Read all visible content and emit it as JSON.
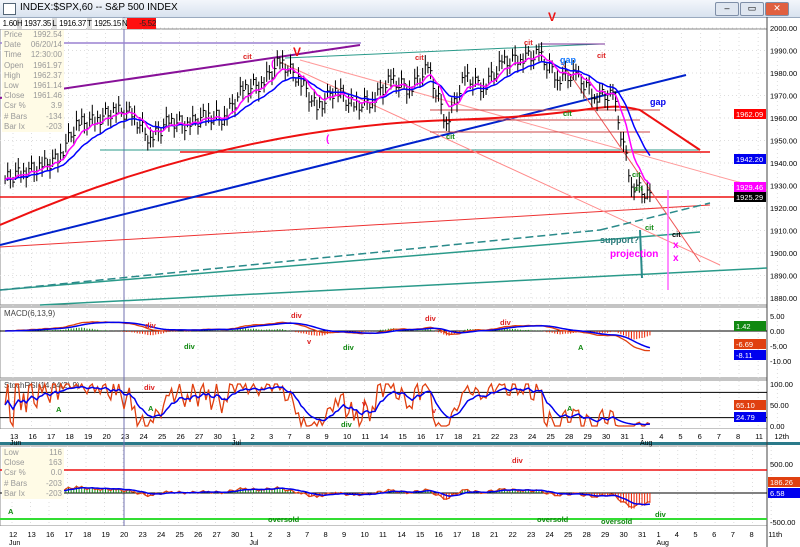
{
  "window": {
    "title": "INDEX:$SPX,60 -- S&P 500 INDEX",
    "minimize": "–",
    "restore": "▭",
    "close": "✕"
  },
  "header": {
    "o_label": "O",
    "o_value": "1.60",
    "h_label": "H",
    "h_value": "1937.35",
    "l_label": "L",
    "l_value": "1916.37",
    "t_label": "T",
    "t_value": "1925.15",
    "n_label": "N",
    "n_value": "-5.52"
  },
  "info_box": [
    [
      "Price",
      "1992.54"
    ],
    [
      "Date",
      "06/20/14"
    ],
    [
      "Time",
      "12:30:00"
    ],
    [
      "Open",
      "1961.97"
    ],
    [
      "High",
      "1962.37"
    ],
    [
      "Low",
      "1961.14"
    ],
    [
      "Close",
      "1961.46"
    ],
    [
      "Csr %",
      "3.9"
    ],
    [
      "# Bars",
      "-134"
    ],
    [
      "Bar Ix",
      "-203"
    ]
  ],
  "info_box_bottom": [
    [
      "Low",
      "116"
    ],
    [
      "Close",
      "163"
    ],
    [
      "Csr %",
      "0.0"
    ],
    [
      "# Bars",
      "-203"
    ],
    [
      "Bar Ix",
      "-203"
    ]
  ],
  "colors": {
    "price": "#000000",
    "fast_ma": "#ff00ff",
    "slow_ma": "#0000ff",
    "ma_long": "#ff0000",
    "trend_teal": "#2a9a8a",
    "up_hist": "#118811",
    "down_hist": "#ee2200"
  },
  "price_axis": {
    "ticks": [
      "2000.00",
      "1990.00",
      "1980.00",
      "1970.00",
      "1960.00",
      "1950.00",
      "1940.00",
      "1930.00",
      "1920.00",
      "1910.00",
      "1900.00",
      "1890.00",
      "1880.00"
    ],
    "badges": [
      {
        "text": "1962.09",
        "color": "#ff0000"
      },
      {
        "text": "1942.20",
        "color": "#0000ee"
      },
      {
        "text": "1929.46",
        "color": "#ff00ff"
      },
      {
        "text": "1925.29",
        "color": "#000000"
      }
    ]
  },
  "macd": {
    "title": "MACD(6,13,9)",
    "ticks": [
      "5.00",
      "0.00",
      "-5.00",
      "-10.00"
    ],
    "badges": [
      {
        "text": "1.42",
        "color": "#118811"
      },
      {
        "text": "-6.69",
        "color": "#e04010"
      },
      {
        "text": "-8.11",
        "color": "#0000ee"
      }
    ]
  },
  "stochrsi": {
    "title": "StochRSI(14,14(2),9)",
    "ticks": [
      "100.00",
      "50.00",
      "0.00"
    ],
    "badges": [
      {
        "text": "65.10",
        "color": "#e04010"
      },
      {
        "text": "24.79",
        "color": "#0000ee"
      }
    ]
  },
  "bottom": {
    "ticks": [
      "500.00",
      "-500.00"
    ],
    "badges": [
      {
        "text": "186.26",
        "color": "#e04010"
      },
      {
        "text": "6.58",
        "color": "#0000ee"
      }
    ]
  },
  "x_axis_top": {
    "labels": [
      "13",
      "16",
      "17",
      "18",
      "19",
      "20",
      "23",
      "24",
      "25",
      "26",
      "27",
      "30",
      "1",
      "2",
      "3",
      "7",
      "8",
      "9",
      "10",
      "11",
      "14",
      "15",
      "16",
      "17",
      "18",
      "21",
      "22",
      "23",
      "24",
      "25",
      "28",
      "29",
      "30",
      "31",
      "1",
      "4",
      "5",
      "6",
      "7",
      "8",
      "11",
      "12th"
    ],
    "months": [
      "Jun",
      "Jul",
      "Aug"
    ]
  },
  "x_axis_bottom": {
    "labels": [
      "12",
      "13",
      "16",
      "17",
      "18",
      "19",
      "20",
      "23",
      "24",
      "25",
      "26",
      "27",
      "30",
      "1",
      "2",
      "3",
      "7",
      "8",
      "9",
      "10",
      "11",
      "14",
      "15",
      "16",
      "17",
      "18",
      "21",
      "22",
      "23",
      "24",
      "25",
      "28",
      "29",
      "30",
      "31",
      "1",
      "4",
      "5",
      "6",
      "7",
      "8",
      "11th"
    ],
    "months": [
      "Jun",
      "Jul",
      "Aug"
    ]
  },
  "chart_data": {
    "type": "line",
    "title": "INDEX:$SPX,60 -- S&P 500 INDEX",
    "x": [
      "Jun 13",
      "Jun 16",
      "Jun 17",
      "Jun 18",
      "Jun 19",
      "Jun 20",
      "Jun 23",
      "Jun 24",
      "Jun 25",
      "Jun 26",
      "Jun 27",
      "Jun 30",
      "Jul 1",
      "Jul 2",
      "Jul 3",
      "Jul 7",
      "Jul 8",
      "Jul 9",
      "Jul 10",
      "Jul 11",
      "Jul 14",
      "Jul 15",
      "Jul 16",
      "Jul 17",
      "Jul 18",
      "Jul 21",
      "Jul 22",
      "Jul 23",
      "Jul 24",
      "Jul 25",
      "Jul 28",
      "Jul 29",
      "Jul 30",
      "Jul 31",
      "Aug 1"
    ],
    "close": [
      1936,
      1938,
      1942,
      1957,
      1959,
      1963,
      1962,
      1950,
      1959,
      1957,
      1961,
      1960,
      1973,
      1975,
      1985,
      1978,
      1964,
      1973,
      1965,
      1968,
      1977,
      1973,
      1982,
      1958,
      1978,
      1974,
      1984,
      1987,
      1988,
      1978,
      1979,
      1970,
      1970,
      1931,
      1925
    ],
    "ylim": [
      1875,
      2005
    ]
  },
  "annotations": [
    {
      "text": "V",
      "color": "#ee1111"
    },
    {
      "text": "V",
      "color": "#ee1111"
    },
    {
      "text": "cit",
      "color": "#dd2222"
    },
    {
      "text": "cit",
      "color": "#dd2222"
    },
    {
      "text": "cit",
      "color": "#dd2222"
    },
    {
      "text": "cit",
      "color": "#dd2222"
    },
    {
      "text": "gap",
      "color": "#1177ff"
    },
    {
      "text": "gap",
      "color": "#0000ee"
    },
    {
      "text": "cit",
      "color": "#118811"
    },
    {
      "text": "cit",
      "color": "#118811"
    },
    {
      "text": "cit",
      "color": "#118811"
    },
    {
      "text": "cit",
      "color": "#118811"
    },
    {
      "text": "cit",
      "color": "#118811"
    },
    {
      "text": "cit",
      "color": "#000000"
    },
    {
      "text": "support?",
      "color": "#2a7a7a"
    },
    {
      "text": "projection",
      "color": "#ff00ff"
    },
    {
      "text": "x",
      "color": "#ff00ff"
    },
    {
      "text": "x",
      "color": "#ff00ff"
    },
    {
      "text": "(",
      "color": "#ff00ff"
    },
    {
      "text": "(",
      "color": "#ff00ff"
    },
    {
      "text": "div",
      "color": "#dd2222"
    },
    {
      "text": "div",
      "color": "#118811"
    },
    {
      "text": "div",
      "color": "#dd2222"
    },
    {
      "text": "v",
      "color": "#dd2222"
    },
    {
      "text": "div",
      "color": "#118811"
    },
    {
      "text": "div",
      "color": "#dd2222"
    },
    {
      "text": "div",
      "color": "#dd2222"
    },
    {
      "text": "A",
      "color": "#118811"
    },
    {
      "text": "div",
      "color": "#dd2222"
    },
    {
      "text": "A",
      "color": "#118811"
    },
    {
      "text": "A",
      "color": "#118811"
    },
    {
      "text": "div",
      "color": "#118811"
    },
    {
      "text": "v",
      "color": "#dd2222"
    },
    {
      "text": "v",
      "color": "#dd2222"
    },
    {
      "text": "A",
      "color": "#118811"
    },
    {
      "text": "A",
      "color": "#118811"
    },
    {
      "text": "oversold",
      "color": "#118811"
    },
    {
      "text": "oversold",
      "color": "#118811"
    },
    {
      "text": "oversold",
      "color": "#118811"
    },
    {
      "text": "div",
      "color": "#dd2222"
    },
    {
      "text": "div",
      "color": "#118811"
    }
  ]
}
